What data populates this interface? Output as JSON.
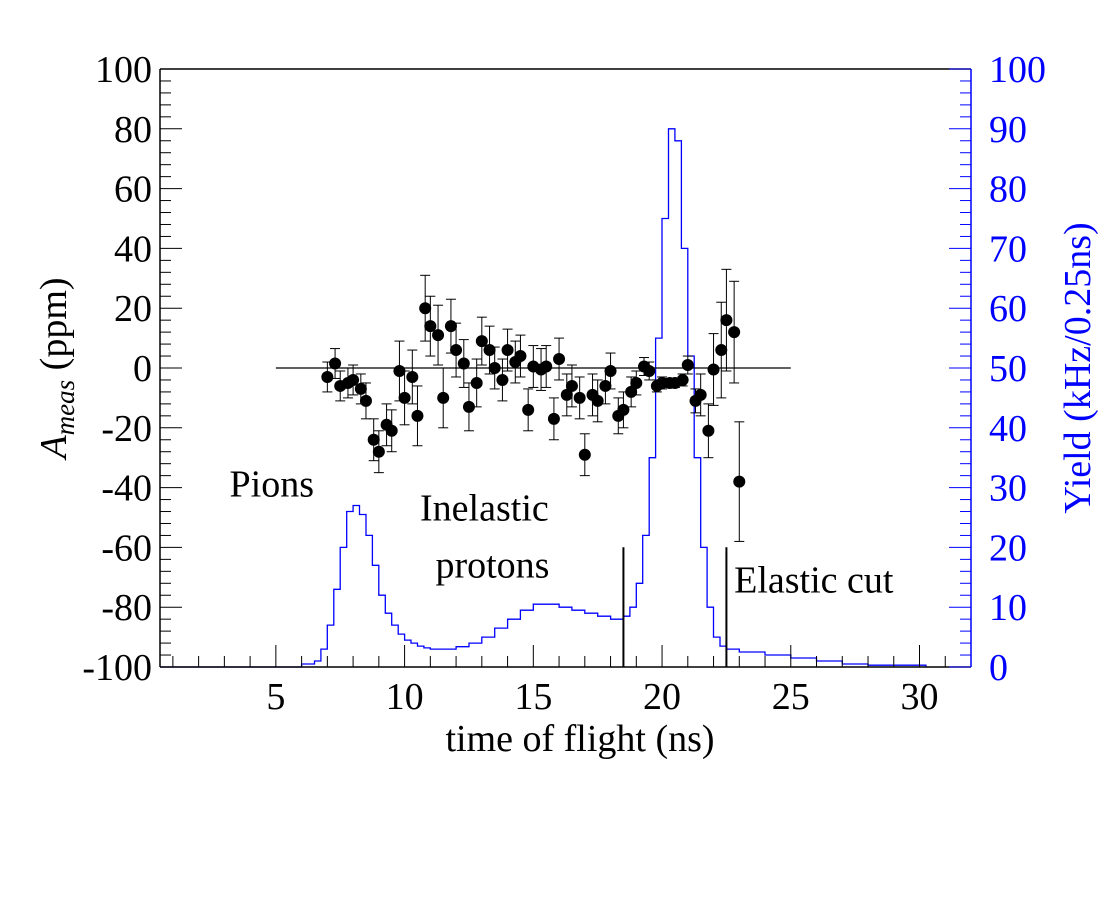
{
  "chart_data": {
    "type": "scatter",
    "title": "",
    "xlabel": "time of flight (ns)",
    "ylabel_left": {
      "main": "A",
      "sub": "meas",
      "rest": " (ppm)"
    },
    "ylabel_right": "Yield (kHz/0.25ns)",
    "xlim": [
      0.5,
      32
    ],
    "ylim_left": [
      -100,
      100
    ],
    "ylim_right": [
      0,
      100
    ],
    "x_ticks": [
      5,
      10,
      15,
      20,
      25,
      30
    ],
    "y_ticks_left": [
      100,
      80,
      60,
      40,
      20,
      0,
      -20,
      -40,
      -60,
      -80,
      -100
    ],
    "y_ticks_right": [
      100,
      90,
      80,
      70,
      60,
      50,
      40,
      30,
      20,
      10,
      0
    ],
    "grid": false,
    "colors": {
      "asymmetry": "#000000",
      "yield": "#0000ff"
    },
    "zero_line": {
      "x_range": [
        5,
        25
      ],
      "y": 0
    },
    "asymmetry": {
      "name": "",
      "points": [
        {
          "x": 7.0,
          "y": -3,
          "err": 5
        },
        {
          "x": 7.3,
          "y": 1.5,
          "err": 5
        },
        {
          "x": 7.5,
          "y": -6,
          "err": 5
        },
        {
          "x": 7.8,
          "y": -5,
          "err": 5
        },
        {
          "x": 8.0,
          "y": -4,
          "err": 5
        },
        {
          "x": 8.3,
          "y": -7,
          "err": 5
        },
        {
          "x": 8.5,
          "y": -11,
          "err": 6
        },
        {
          "x": 8.8,
          "y": -24,
          "err": 7
        },
        {
          "x": 9.0,
          "y": -28,
          "err": 7
        },
        {
          "x": 9.3,
          "y": -19,
          "err": 7
        },
        {
          "x": 9.5,
          "y": -21,
          "err": 7
        },
        {
          "x": 9.8,
          "y": -1,
          "err": 10
        },
        {
          "x": 10.0,
          "y": -10,
          "err": 9
        },
        {
          "x": 10.3,
          "y": -3,
          "err": 9
        },
        {
          "x": 10.5,
          "y": -16,
          "err": 10
        },
        {
          "x": 10.8,
          "y": 20,
          "err": 11
        },
        {
          "x": 11.0,
          "y": 14,
          "err": 10
        },
        {
          "x": 11.3,
          "y": 11,
          "err": 10
        },
        {
          "x": 11.5,
          "y": -10,
          "err": 10
        },
        {
          "x": 11.8,
          "y": 14,
          "err": 9
        },
        {
          "x": 12.0,
          "y": 6,
          "err": 9
        },
        {
          "x": 12.3,
          "y": 1.5,
          "err": 8
        },
        {
          "x": 12.5,
          "y": -13,
          "err": 8
        },
        {
          "x": 12.8,
          "y": -5,
          "err": 8
        },
        {
          "x": 13.0,
          "y": 9,
          "err": 8
        },
        {
          "x": 13.3,
          "y": 6,
          "err": 8
        },
        {
          "x": 13.5,
          "y": 0,
          "err": 7
        },
        {
          "x": 13.8,
          "y": -4,
          "err": 7
        },
        {
          "x": 14.0,
          "y": 6,
          "err": 7
        },
        {
          "x": 14.3,
          "y": 2,
          "err": 7
        },
        {
          "x": 14.5,
          "y": 4,
          "err": 7
        },
        {
          "x": 14.8,
          "y": -14,
          "err": 7
        },
        {
          "x": 15.0,
          "y": 0.5,
          "err": 7
        },
        {
          "x": 15.3,
          "y": -0.5,
          "err": 7
        },
        {
          "x": 15.5,
          "y": 0.5,
          "err": 7
        },
        {
          "x": 15.8,
          "y": -17,
          "err": 7
        },
        {
          "x": 16.0,
          "y": 3,
          "err": 7
        },
        {
          "x": 16.3,
          "y": -9,
          "err": 7
        },
        {
          "x": 16.5,
          "y": -6,
          "err": 7
        },
        {
          "x": 16.8,
          "y": -10,
          "err": 7
        },
        {
          "x": 17.0,
          "y": -29,
          "err": 7
        },
        {
          "x": 17.3,
          "y": -9,
          "err": 7
        },
        {
          "x": 17.5,
          "y": -11,
          "err": 7
        },
        {
          "x": 17.8,
          "y": -6,
          "err": 6
        },
        {
          "x": 18.0,
          "y": -1,
          "err": 6
        },
        {
          "x": 18.3,
          "y": -16,
          "err": 6
        },
        {
          "x": 18.5,
          "y": -14,
          "err": 6
        },
        {
          "x": 18.8,
          "y": -8,
          "err": 5
        },
        {
          "x": 19.0,
          "y": -5,
          "err": 4
        },
        {
          "x": 19.3,
          "y": 0.5,
          "err": 3
        },
        {
          "x": 19.5,
          "y": -1,
          "err": 3
        },
        {
          "x": 19.8,
          "y": -6,
          "err": 2
        },
        {
          "x": 20.0,
          "y": -5,
          "err": 2
        },
        {
          "x": 20.3,
          "y": -5,
          "err": 1.5
        },
        {
          "x": 20.5,
          "y": -5,
          "err": 1.5
        },
        {
          "x": 20.8,
          "y": -4,
          "err": 2
        },
        {
          "x": 21.0,
          "y": 1,
          "err": 3
        },
        {
          "x": 21.3,
          "y": -11,
          "err": 4
        },
        {
          "x": 21.5,
          "y": -9,
          "err": 7
        },
        {
          "x": 21.8,
          "y": -21,
          "err": 9
        },
        {
          "x": 22.0,
          "y": -0.5,
          "err": 12
        },
        {
          "x": 22.3,
          "y": 6,
          "err": 16
        },
        {
          "x": 22.5,
          "y": 16,
          "err": 17
        },
        {
          "x": 22.8,
          "y": 12,
          "err": 17
        },
        {
          "x": 23.0,
          "y": -38,
          "err": 20
        }
      ]
    },
    "yield": {
      "name": "",
      "bin_width": 0.25,
      "bins": [
        {
          "x": 0.5,
          "y": 0
        },
        {
          "x": 5.0,
          "y": 0
        },
        {
          "x": 6.0,
          "y": 0.5
        },
        {
          "x": 6.5,
          "y": 1
        },
        {
          "x": 6.75,
          "y": 3
        },
        {
          "x": 7.0,
          "y": 7
        },
        {
          "x": 7.25,
          "y": 13
        },
        {
          "x": 7.5,
          "y": 20
        },
        {
          "x": 7.75,
          "y": 26
        },
        {
          "x": 8.0,
          "y": 27
        },
        {
          "x": 8.25,
          "y": 25.5
        },
        {
          "x": 8.5,
          "y": 22
        },
        {
          "x": 8.75,
          "y": 17
        },
        {
          "x": 9.0,
          "y": 12
        },
        {
          "x": 9.25,
          "y": 9
        },
        {
          "x": 9.5,
          "y": 7
        },
        {
          "x": 9.75,
          "y": 5.5
        },
        {
          "x": 10.0,
          "y": 4.5
        },
        {
          "x": 10.25,
          "y": 4
        },
        {
          "x": 10.5,
          "y": 3.5
        },
        {
          "x": 10.75,
          "y": 3.2
        },
        {
          "x": 11.0,
          "y": 3
        },
        {
          "x": 11.5,
          "y": 3
        },
        {
          "x": 12.0,
          "y": 3.4
        },
        {
          "x": 12.5,
          "y": 4
        },
        {
          "x": 13.0,
          "y": 5
        },
        {
          "x": 13.5,
          "y": 6.5
        },
        {
          "x": 14.0,
          "y": 8
        },
        {
          "x": 14.5,
          "y": 9.5
        },
        {
          "x": 15.0,
          "y": 10.5
        },
        {
          "x": 15.5,
          "y": 10.5
        },
        {
          "x": 16.0,
          "y": 10
        },
        {
          "x": 16.5,
          "y": 9.5
        },
        {
          "x": 17.0,
          "y": 9
        },
        {
          "x": 17.5,
          "y": 8.5
        },
        {
          "x": 18.0,
          "y": 8
        },
        {
          "x": 18.5,
          "y": 8.5
        },
        {
          "x": 18.75,
          "y": 10
        },
        {
          "x": 19.0,
          "y": 14
        },
        {
          "x": 19.25,
          "y": 22
        },
        {
          "x": 19.5,
          "y": 35
        },
        {
          "x": 19.75,
          "y": 55
        },
        {
          "x": 20.0,
          "y": 75
        },
        {
          "x": 20.25,
          "y": 90
        },
        {
          "x": 20.5,
          "y": 88
        },
        {
          "x": 20.75,
          "y": 70
        },
        {
          "x": 21.0,
          "y": 52
        },
        {
          "x": 21.25,
          "y": 35
        },
        {
          "x": 21.5,
          "y": 20
        },
        {
          "x": 21.75,
          "y": 10
        },
        {
          "x": 22.0,
          "y": 5
        },
        {
          "x": 22.25,
          "y": 3.5
        },
        {
          "x": 22.5,
          "y": 3
        },
        {
          "x": 23.0,
          "y": 2.5
        },
        {
          "x": 24.0,
          "y": 2
        },
        {
          "x": 25.0,
          "y": 1.5
        },
        {
          "x": 26.0,
          "y": 1
        },
        {
          "x": 27.0,
          "y": 0.5
        },
        {
          "x": 28.0,
          "y": 0.3
        },
        {
          "x": 30.25,
          "y": 0
        }
      ],
      "end_x": 30.25
    },
    "cut_lines": [
      18.5,
      22.5
    ],
    "annotations": [
      {
        "label": "Pions",
        "x": 3.2,
        "y_right": 28.5
      },
      {
        "label": "Inelastic",
        "x": 10.6,
        "y_right": 24.5
      },
      {
        "label": "protons",
        "x": 11.2,
        "y_right": 15
      },
      {
        "label": "Elastic cut",
        "x": 22.8,
        "y_right": 12.5
      }
    ]
  }
}
